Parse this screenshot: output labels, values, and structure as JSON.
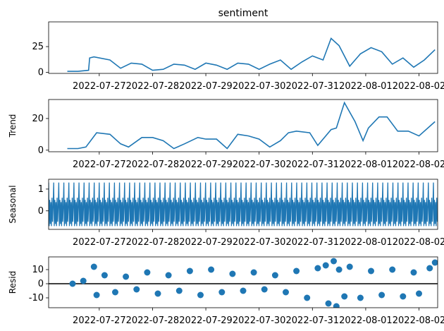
{
  "chart_data": [
    {
      "type": "line",
      "panel": "observed",
      "title": "sentiment",
      "ylabel": "",
      "ylim": [
        -1,
        49
      ],
      "yticks": [
        0,
        25
      ],
      "xticks": [
        "2022-07-27",
        "2022-07-28",
        "2022-07-29",
        "2022-07-30",
        "2022-07-31",
        "2022-08-01",
        "2022-08-02"
      ],
      "color": "#1f77b4",
      "series": [
        {
          "x": [
            0,
            0.2,
            0.4,
            0.42,
            0.5,
            0.8,
            1.0,
            1.2,
            1.4,
            1.6,
            1.8,
            2.0,
            2.2,
            2.4,
            2.6,
            2.8,
            3.0,
            3.2,
            3.4,
            3.6,
            3.8,
            4.0,
            4.2,
            4.4,
            4.6,
            4.8,
            4.95,
            5.1,
            5.3,
            5.5,
            5.7,
            5.9,
            6.1,
            6.3,
            6.5,
            6.7,
            6.9
          ],
          "y": [
            1,
            1,
            2,
            14,
            15,
            12,
            4,
            9,
            8,
            2,
            3,
            8,
            7,
            3,
            9,
            7,
            3,
            9,
            8,
            3,
            8,
            12,
            3,
            10,
            16,
            12,
            33,
            26,
            6,
            18,
            24,
            20,
            8,
            14,
            5,
            12,
            22
          ]
        }
      ]
    },
    {
      "type": "line",
      "panel": "trend",
      "ylabel": "Trend",
      "ylim": [
        -1,
        32
      ],
      "yticks": [
        0,
        20
      ],
      "xticks": [
        "2022-07-27",
        "2022-07-28",
        "2022-07-29",
        "2022-07-30",
        "2022-07-31",
        "2022-08-01",
        "2022-08-02"
      ],
      "color": "#1f77b4",
      "series": [
        {
          "x": [
            0,
            0.2,
            0.35,
            0.55,
            0.8,
            1.0,
            1.15,
            1.4,
            1.6,
            1.8,
            2.0,
            2.2,
            2.45,
            2.6,
            2.8,
            3.0,
            3.2,
            3.4,
            3.6,
            3.8,
            4.0,
            4.15,
            4.3,
            4.55,
            4.7,
            4.95,
            5.05,
            5.2,
            5.4,
            5.55,
            5.65,
            5.85,
            6.0,
            6.2,
            6.4,
            6.6,
            6.9
          ],
          "y": [
            1,
            1,
            2,
            11,
            10,
            4,
            2,
            8,
            8,
            6,
            1,
            4,
            8,
            7,
            7,
            1,
            10,
            9,
            7,
            2,
            6,
            11,
            12,
            11,
            3,
            13,
            14,
            30,
            18,
            6,
            14,
            21,
            21,
            12,
            12,
            9,
            18
          ]
        }
      ]
    },
    {
      "type": "line",
      "panel": "seasonal",
      "ylabel": "Seasonal",
      "ylim": [
        -0.85,
        1.45
      ],
      "yticks": [
        0,
        1
      ],
      "xticks": [
        "2022-07-27",
        "2022-07-28",
        "2022-07-29",
        "2022-07-30",
        "2022-07-31",
        "2022-08-01",
        "2022-08-02"
      ],
      "color": "#1f77b4",
      "period_days": 0.095,
      "pattern": [
        1.3,
        -0.7,
        0.5,
        -0.6,
        0.4,
        -0.7,
        0.6,
        -0.5,
        0.2
      ]
    },
    {
      "type": "scatter",
      "panel": "resid",
      "ylabel": "Resid",
      "ylim": [
        -17,
        19
      ],
      "yticks": [
        -10,
        0,
        10
      ],
      "xticks": [
        "2022-07-27",
        "2022-07-28",
        "2022-07-29",
        "2022-07-30",
        "2022-07-31",
        "2022-08-01",
        "2022-08-02"
      ],
      "color": "#1f77b4",
      "zero_line": true,
      "series": [
        {
          "x": [
            0.1,
            0.3,
            0.5,
            0.55,
            0.7,
            0.9,
            1.1,
            1.3,
            1.5,
            1.7,
            1.9,
            2.1,
            2.3,
            2.5,
            2.7,
            2.9,
            3.1,
            3.3,
            3.5,
            3.7,
            3.9,
            4.1,
            4.3,
            4.5,
            4.7,
            4.85,
            4.9,
            5.0,
            5.05,
            5.1,
            5.2,
            5.3,
            5.5,
            5.7,
            5.9,
            6.1,
            6.3,
            6.5,
            6.6,
            6.8,
            6.9
          ],
          "y": [
            0,
            2,
            12,
            -8,
            6,
            -6,
            5,
            -4,
            8,
            -7,
            6,
            -5,
            9,
            -8,
            10,
            -6,
            7,
            -5,
            8,
            -4,
            6,
            -6,
            9,
            -10,
            11,
            13,
            -14,
            16,
            -16,
            10,
            -9,
            12,
            -10,
            9,
            -8,
            10,
            -9,
            8,
            -7,
            11,
            15
          ]
        }
      ]
    }
  ]
}
